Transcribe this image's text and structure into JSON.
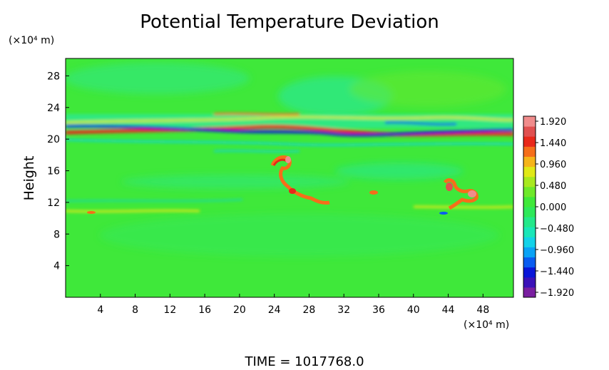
{
  "chart_data": {
    "type": "heatmap",
    "title": "Potential Temperature Deviation",
    "xunit": "(×10⁴ m)",
    "yunit": "(×10⁴ m)",
    "ylabel": "Height",
    "xlabel": "",
    "xlim": [
      0,
      51.5
    ],
    "ylim": [
      0,
      30.2
    ],
    "xticks": [
      4,
      8,
      12,
      16,
      20,
      24,
      28,
      32,
      36,
      40,
      44,
      48
    ],
    "yticks": [
      4,
      8,
      12,
      16,
      20,
      24,
      28
    ],
    "colorbar": {
      "range": [
        -2.04,
        2.04
      ],
      "labels": [
        "1.920",
        "1.440",
        "0.960",
        "0.480",
        "0.000",
        "−0.480",
        "−0.960",
        "−1.440",
        "−1.920"
      ],
      "colors": [
        "#7a1fa0",
        "#3b12b8",
        "#0a16d8",
        "#0a5cf0",
        "#0aa2f5",
        "#13d2e8",
        "#1ae6b8",
        "#24e88a",
        "#2ee85a",
        "#3fe83a",
        "#6ee82a",
        "#a8e81f",
        "#e0e817",
        "#f5b41a",
        "#f56e1a",
        "#e8281a",
        "#e05050",
        "#f08c8c"
      ]
    },
    "annotation": "TIME  =  1017768.0",
    "background_value": 0.1
  }
}
